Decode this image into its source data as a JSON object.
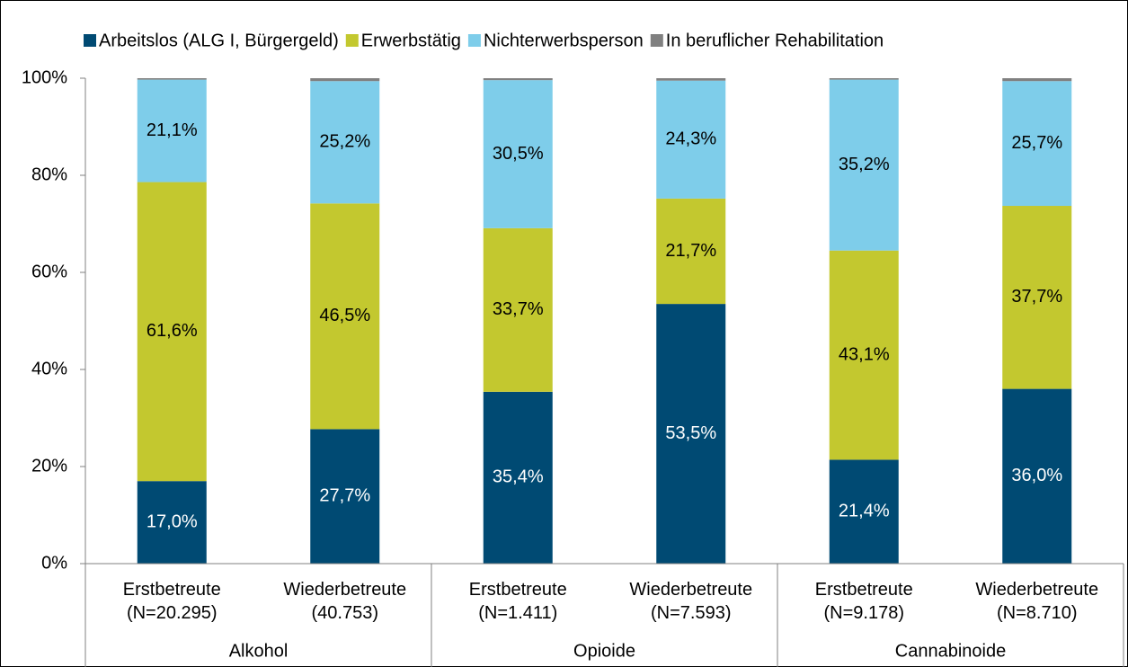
{
  "chart_data": {
    "type": "stacked_bar",
    "categories": [
      "Erstbetreute\n(N=20.295)",
      "Wiederbetreute\n(40.753)",
      "Erstbetreute\n(N=1.411)",
      "Wiederbetreute\n(N=7.593)",
      "Erstbetreute\n(N=9.178)",
      "Wiederbetreute\n(N=8.710)"
    ],
    "groups": [
      {
        "name": "Alkohol",
        "size": 2
      },
      {
        "name": "Opioide",
        "size": 2
      },
      {
        "name": "Cannabinoide",
        "size": 2
      }
    ],
    "series": [
      {
        "name": "Arbeitslos (ALG I, Bürgergeld)",
        "color": "#004a73",
        "label_color": "#ffffff",
        "values": [
          17.0,
          27.7,
          35.4,
          53.5,
          21.4,
          36.0
        ],
        "value_labels": [
          "17,0%",
          "27,7%",
          "35,4%",
          "53,5%",
          "21,4%",
          "36,0%"
        ]
      },
      {
        "name": "Erwerbstätig",
        "color": "#c3c82f",
        "label_color": "#000000",
        "values": [
          61.6,
          46.5,
          33.7,
          21.7,
          43.1,
          37.7
        ],
        "value_labels": [
          "61,6%",
          "46,5%",
          "33,7%",
          "21,7%",
          "43,1%",
          "37,7%"
        ]
      },
      {
        "name": "Nichterwerbsperson",
        "color": "#7ecdea",
        "label_color": "#000000",
        "values": [
          21.1,
          25.2,
          30.5,
          24.3,
          35.2,
          25.7
        ],
        "value_labels": [
          "21,1%",
          "25,2%",
          "30,5%",
          "24,3%",
          "35,2%",
          "25,7%"
        ]
      },
      {
        "name": "In beruflicher Rehabilitation",
        "color": "#808080",
        "values": [
          0.3,
          0.6,
          0.4,
          0.5,
          0.3,
          0.6
        ]
      }
    ],
    "ylim": [
      0,
      100
    ],
    "yticks": [
      {
        "value": 0,
        "label": "0%"
      },
      {
        "value": 20,
        "label": "20%"
      },
      {
        "value": 40,
        "label": "40%"
      },
      {
        "value": 60,
        "label": "60%"
      },
      {
        "value": 80,
        "label": "80%"
      },
      {
        "value": 100,
        "label": "100%"
      }
    ],
    "grid": false,
    "legend": "top"
  }
}
